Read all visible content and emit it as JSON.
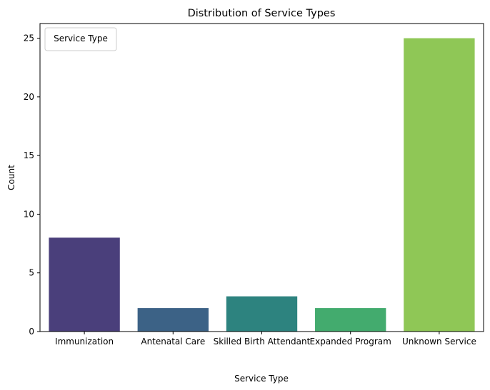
{
  "chart_data": {
    "type": "bar",
    "title": "Distribution of Service Types",
    "xlabel": "Service Type",
    "ylabel": "Count",
    "categories": [
      "Immunization",
      "Antenatal Care",
      "Skilled Birth Attendant",
      "Expanded Program",
      "Unknown Service"
    ],
    "values": [
      8,
      2,
      3,
      2,
      25
    ],
    "colors": [
      "#4a3f7b",
      "#3c6286",
      "#2d837f",
      "#43ab6e",
      "#8fc756"
    ],
    "ylim": [
      0,
      26.25
    ],
    "yticks": [
      0,
      5,
      10,
      15,
      20,
      25
    ],
    "grid": false,
    "legend": {
      "title": "Service Type",
      "placement": "top-left"
    }
  }
}
